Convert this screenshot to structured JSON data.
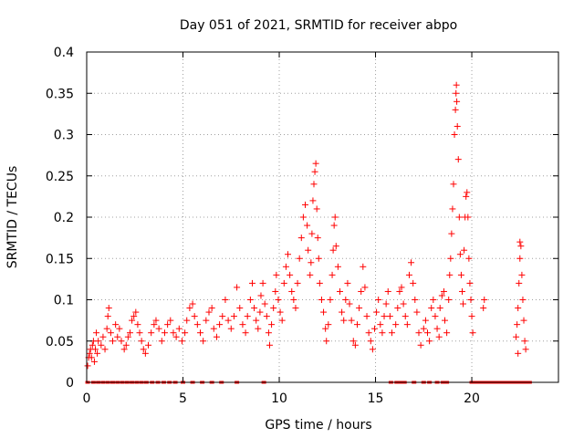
{
  "chart_data": {
    "type": "scatter",
    "title": "Day 051 of 2021, SRMTID for receiver abpo",
    "xlabel": "GPS time / hours",
    "ylabel": "SRMTID / TECUs",
    "xlim": [
      0,
      24.5
    ],
    "ylim": [
      0,
      0.4
    ],
    "x_ticks": [
      0,
      5,
      10,
      15,
      20
    ],
    "x_tick_labels": [
      "0",
      "5",
      "10",
      "15",
      "20"
    ],
    "y_ticks": [
      0,
      0.05,
      0.1,
      0.15,
      0.2,
      0.25,
      0.3,
      0.35,
      0.4
    ],
    "y_tick_labels": [
      "0",
      "0.05",
      "0.1",
      "0.15",
      "0.2",
      "0.25",
      "0.3",
      "0.35",
      "0.4"
    ],
    "grid": true,
    "marker_color": "#ff0000",
    "marker": "plus",
    "series": [
      {
        "name": "SRMTID",
        "points": [
          [
            0.05,
            0.02
          ],
          [
            0.1,
            0.03
          ],
          [
            0.15,
            0.035
          ],
          [
            0.2,
            0.04
          ],
          [
            0.25,
            0.03
          ],
          [
            0.3,
            0.045
          ],
          [
            0.35,
            0.05
          ],
          [
            0.4,
            0.025
          ],
          [
            0.45,
            0.04
          ],
          [
            0.5,
            0.06
          ],
          [
            0.55,
            0.035
          ],
          [
            0.6,
            0.05
          ],
          [
            0.75,
            0.045
          ],
          [
            0.85,
            0.055
          ],
          [
            0.95,
            0.04
          ],
          [
            1.05,
            0.065
          ],
          [
            1.1,
            0.08
          ],
          [
            1.15,
            0.09
          ],
          [
            1.25,
            0.06
          ],
          [
            1.35,
            0.05
          ],
          [
            1.5,
            0.07
          ],
          [
            1.6,
            0.055
          ],
          [
            1.7,
            0.065
          ],
          [
            1.8,
            0.05
          ],
          [
            1.95,
            0.04
          ],
          [
            2.05,
            0.045
          ],
          [
            2.15,
            0.055
          ],
          [
            2.25,
            0.06
          ],
          [
            2.35,
            0.075
          ],
          [
            2.45,
            0.08
          ],
          [
            2.55,
            0.085
          ],
          [
            2.65,
            0.07
          ],
          [
            2.75,
            0.06
          ],
          [
            2.85,
            0.05
          ],
          [
            2.95,
            0.04
          ],
          [
            3.05,
            0.035
          ],
          [
            3.2,
            0.045
          ],
          [
            3.35,
            0.06
          ],
          [
            3.5,
            0.07
          ],
          [
            3.6,
            0.075
          ],
          [
            3.75,
            0.065
          ],
          [
            3.9,
            0.05
          ],
          [
            4.05,
            0.06
          ],
          [
            4.2,
            0.07
          ],
          [
            4.35,
            0.075
          ],
          [
            4.5,
            0.06
          ],
          [
            4.65,
            0.055
          ],
          [
            4.8,
            0.065
          ],
          [
            4.95,
            0.05
          ],
          [
            5.1,
            0.06
          ],
          [
            5.2,
            0.075
          ],
          [
            5.35,
            0.09
          ],
          [
            5.5,
            0.095
          ],
          [
            5.6,
            0.08
          ],
          [
            5.75,
            0.07
          ],
          [
            5.9,
            0.06
          ],
          [
            6.05,
            0.05
          ],
          [
            6.2,
            0.075
          ],
          [
            6.35,
            0.085
          ],
          [
            6.5,
            0.09
          ],
          [
            6.6,
            0.065
          ],
          [
            6.75,
            0.055
          ],
          [
            6.9,
            0.07
          ],
          [
            7.05,
            0.08
          ],
          [
            7.2,
            0.1
          ],
          [
            7.35,
            0.075
          ],
          [
            7.5,
            0.065
          ],
          [
            7.65,
            0.08
          ],
          [
            7.8,
            0.115
          ],
          [
            7.95,
            0.09
          ],
          [
            8.1,
            0.07
          ],
          [
            8.25,
            0.06
          ],
          [
            8.35,
            0.08
          ],
          [
            8.5,
            0.1
          ],
          [
            8.6,
            0.12
          ],
          [
            8.7,
            0.09
          ],
          [
            8.8,
            0.075
          ],
          [
            8.9,
            0.065
          ],
          [
            9.0,
            0.085
          ],
          [
            9.05,
            0.105
          ],
          [
            9.15,
            0.12
          ],
          [
            9.25,
            0.095
          ],
          [
            9.35,
            0.08
          ],
          [
            9.45,
            0.06
          ],
          [
            9.5,
            0.045
          ],
          [
            9.6,
            0.07
          ],
          [
            9.7,
            0.09
          ],
          [
            9.8,
            0.11
          ],
          [
            9.85,
            0.13
          ],
          [
            9.95,
            0.1
          ],
          [
            10.05,
            0.085
          ],
          [
            10.15,
            0.075
          ],
          [
            10.25,
            0.12
          ],
          [
            10.35,
            0.14
          ],
          [
            10.45,
            0.155
          ],
          [
            10.55,
            0.13
          ],
          [
            10.65,
            0.11
          ],
          [
            10.75,
            0.1
          ],
          [
            10.85,
            0.09
          ],
          [
            10.95,
            0.12
          ],
          [
            11.05,
            0.15
          ],
          [
            11.15,
            0.175
          ],
          [
            11.25,
            0.2
          ],
          [
            11.35,
            0.215
          ],
          [
            11.45,
            0.19
          ],
          [
            11.5,
            0.16
          ],
          [
            11.6,
            0.13
          ],
          [
            11.65,
            0.145
          ],
          [
            11.7,
            0.18
          ],
          [
            11.75,
            0.22
          ],
          [
            11.8,
            0.24
          ],
          [
            11.85,
            0.255
          ],
          [
            11.9,
            0.265
          ],
          [
            11.95,
            0.21
          ],
          [
            12.0,
            0.175
          ],
          [
            12.05,
            0.15
          ],
          [
            12.1,
            0.12
          ],
          [
            12.2,
            0.1
          ],
          [
            12.3,
            0.085
          ],
          [
            12.4,
            0.065
          ],
          [
            12.45,
            0.05
          ],
          [
            12.55,
            0.07
          ],
          [
            12.65,
            0.1
          ],
          [
            12.75,
            0.13
          ],
          [
            12.8,
            0.16
          ],
          [
            12.85,
            0.19
          ],
          [
            12.9,
            0.2
          ],
          [
            12.95,
            0.165
          ],
          [
            13.05,
            0.14
          ],
          [
            13.15,
            0.11
          ],
          [
            13.25,
            0.085
          ],
          [
            13.35,
            0.075
          ],
          [
            13.45,
            0.1
          ],
          [
            13.55,
            0.12
          ],
          [
            13.65,
            0.095
          ],
          [
            13.75,
            0.075
          ],
          [
            13.85,
            0.05
          ],
          [
            13.95,
            0.045
          ],
          [
            14.05,
            0.07
          ],
          [
            14.15,
            0.09
          ],
          [
            14.25,
            0.11
          ],
          [
            14.35,
            0.14
          ],
          [
            14.45,
            0.115
          ],
          [
            14.55,
            0.08
          ],
          [
            14.65,
            0.06
          ],
          [
            14.75,
            0.05
          ],
          [
            14.85,
            0.04
          ],
          [
            14.95,
            0.065
          ],
          [
            15.05,
            0.085
          ],
          [
            15.15,
            0.1
          ],
          [
            15.25,
            0.07
          ],
          [
            15.35,
            0.06
          ],
          [
            15.45,
            0.08
          ],
          [
            15.55,
            0.095
          ],
          [
            15.65,
            0.11
          ],
          [
            15.75,
            0.08
          ],
          [
            15.85,
            0.06
          ],
          [
            16.05,
            0.07
          ],
          [
            16.15,
            0.09
          ],
          [
            16.25,
            0.11
          ],
          [
            16.35,
            0.115
          ],
          [
            16.45,
            0.095
          ],
          [
            16.55,
            0.08
          ],
          [
            16.65,
            0.07
          ],
          [
            16.75,
            0.13
          ],
          [
            16.85,
            0.145
          ],
          [
            16.95,
            0.12
          ],
          [
            17.05,
            0.1
          ],
          [
            17.15,
            0.085
          ],
          [
            17.25,
            0.06
          ],
          [
            17.35,
            0.045
          ],
          [
            17.5,
            0.065
          ],
          [
            17.6,
            0.075
          ],
          [
            17.7,
            0.06
          ],
          [
            17.8,
            0.05
          ],
          [
            17.9,
            0.09
          ],
          [
            18.0,
            0.1
          ],
          [
            18.1,
            0.08
          ],
          [
            18.2,
            0.065
          ],
          [
            18.3,
            0.055
          ],
          [
            18.35,
            0.09
          ],
          [
            18.45,
            0.105
          ],
          [
            18.55,
            0.11
          ],
          [
            18.6,
            0.075
          ],
          [
            18.7,
            0.06
          ],
          [
            18.8,
            0.1
          ],
          [
            18.85,
            0.13
          ],
          [
            18.9,
            0.15
          ],
          [
            18.95,
            0.18
          ],
          [
            19.0,
            0.21
          ],
          [
            19.05,
            0.24
          ],
          [
            19.1,
            0.3
          ],
          [
            19.15,
            0.33
          ],
          [
            19.18,
            0.35
          ],
          [
            19.2,
            0.36
          ],
          [
            19.22,
            0.34
          ],
          [
            19.25,
            0.31
          ],
          [
            19.3,
            0.27
          ],
          [
            19.35,
            0.2
          ],
          [
            19.4,
            0.155
          ],
          [
            19.45,
            0.13
          ],
          [
            19.5,
            0.11
          ],
          [
            19.55,
            0.095
          ],
          [
            19.6,
            0.16
          ],
          [
            19.65,
            0.2
          ],
          [
            19.7,
            0.225
          ],
          [
            19.75,
            0.23
          ],
          [
            19.8,
            0.2
          ],
          [
            19.85,
            0.15
          ],
          [
            19.9,
            0.12
          ],
          [
            19.95,
            0.1
          ],
          [
            20.0,
            0.08
          ],
          [
            20.05,
            0.06
          ],
          [
            20.6,
            0.09
          ],
          [
            20.65,
            0.1
          ],
          [
            22.3,
            0.055
          ],
          [
            22.35,
            0.07
          ],
          [
            22.4,
            0.09
          ],
          [
            22.45,
            0.12
          ],
          [
            22.5,
            0.15
          ],
          [
            22.55,
            0.165
          ],
          [
            22.6,
            0.13
          ],
          [
            22.65,
            0.1
          ],
          [
            22.7,
            0.075
          ],
          [
            22.75,
            0.05
          ],
          [
            22.8,
            0.04
          ],
          [
            22.5,
            0.17
          ],
          [
            22.4,
            0.035
          ]
        ],
        "zero_points": [
          0.05,
          0.35,
          0.6,
          0.85,
          1.1,
          1.35,
          1.6,
          1.85,
          2.1,
          2.35,
          2.6,
          2.85,
          3.1,
          3.4,
          3.7,
          4.0,
          4.3,
          4.6,
          5.0,
          5.5,
          6.0,
          6.5,
          7.0,
          7.8,
          9.2,
          15.8,
          16.1,
          16.3,
          16.5,
          17.0,
          17.5,
          17.8,
          18.2,
          18.5,
          18.7,
          20.0,
          20.2,
          20.4,
          20.6,
          20.8,
          21.0,
          21.2,
          21.4,
          21.6,
          21.8,
          22.0,
          22.2,
          22.4,
          22.6,
          22.8,
          23.0
        ]
      }
    ]
  }
}
